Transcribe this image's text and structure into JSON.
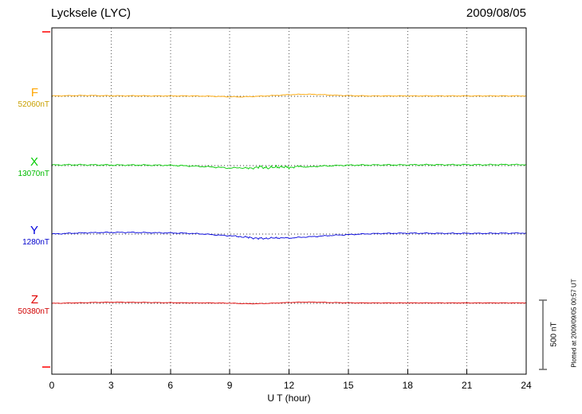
{
  "chart_data": {
    "type": "line",
    "title": "Lycksele (LYC)",
    "date": "2009/08/05",
    "xlabel": "U T (hour)",
    "ylabel": "",
    "xlim": [
      0,
      24
    ],
    "grid": true,
    "x_ticks": [
      0,
      3,
      6,
      9,
      12,
      15,
      18,
      21,
      24
    ],
    "x_sample_step_hours": 0.5,
    "scale_bar_nT": 500,
    "scale_bar_label": "500 nT",
    "plotted_at": "Plotted at 2009/09/05 00:57 UT",
    "series": [
      {
        "name": "F",
        "baseline_nT": 52060,
        "baseline_label": "52060nT",
        "color": "#FFA500",
        "value_color": "#C8A000",
        "noise_nT": 3,
        "offsets_nT": [
          3,
          4,
          5,
          6,
          6,
          5,
          4,
          4,
          4,
          4,
          3,
          3,
          3,
          3,
          3,
          2,
          1,
          -1,
          -3,
          -4,
          -2,
          1,
          4,
          8,
          12,
          14,
          15,
          13,
          10,
          7,
          5,
          4,
          3,
          3,
          3,
          3,
          3,
          3,
          3,
          3,
          3,
          3,
          3,
          3,
          3,
          3,
          3,
          3,
          3
        ]
      },
      {
        "name": "X",
        "baseline_nT": 13070,
        "baseline_label": "13070nT",
        "color": "#00CC00",
        "value_color": "#00BB00",
        "noise_nT": 5,
        "noise_burst": {
          "start": 9.5,
          "end": 13.2,
          "amp": 12
        },
        "offsets_nT": [
          4,
          5,
          6,
          6,
          5,
          5,
          4,
          4,
          4,
          4,
          3,
          3,
          2,
          0,
          -3,
          -6,
          -9,
          -13,
          -18,
          -15,
          -20,
          -10,
          -16,
          -8,
          -14,
          -6,
          -10,
          -4,
          -2,
          1,
          3,
          4,
          4,
          5,
          5,
          5,
          5,
          6,
          6,
          6,
          6,
          6,
          6,
          6,
          6,
          7,
          7,
          7,
          7
        ]
      },
      {
        "name": "Y",
        "baseline_nT": 1280,
        "baseline_label": "1280nT",
        "color": "#0000DD",
        "value_color": "#0000CC",
        "noise_nT": 4,
        "noise_burst": {
          "start": 8.5,
          "end": 12.5,
          "amp": 6
        },
        "offsets_nT": [
          0,
          3,
          6,
          8,
          10,
          11,
          12,
          12,
          12,
          11,
          10,
          9,
          8,
          7,
          5,
          2,
          -3,
          -8,
          -12,
          -18,
          -25,
          -32,
          -30,
          -27,
          -29,
          -24,
          -20,
          -16,
          -11,
          -7,
          -4,
          -1,
          2,
          4,
          5,
          6,
          6,
          6,
          6,
          5,
          5,
          5,
          5,
          5,
          5,
          6,
          6,
          7,
          7
        ]
      },
      {
        "name": "Z",
        "baseline_nT": 50380,
        "baseline_label": "50380nT",
        "color": "#E00000",
        "value_color": "#D00000",
        "noise_nT": 2,
        "offsets_nT": [
          0,
          1,
          3,
          4,
          6,
          7,
          8,
          8,
          7,
          7,
          6,
          5,
          5,
          4,
          4,
          3,
          3,
          2,
          1,
          -1,
          -3,
          -2,
          0,
          3,
          6,
          8,
          9,
          8,
          6,
          5,
          4,
          3,
          3,
          3,
          3,
          3,
          3,
          3,
          3,
          3,
          3,
          3,
          3,
          3,
          3,
          3,
          3,
          3,
          3
        ]
      }
    ]
  }
}
